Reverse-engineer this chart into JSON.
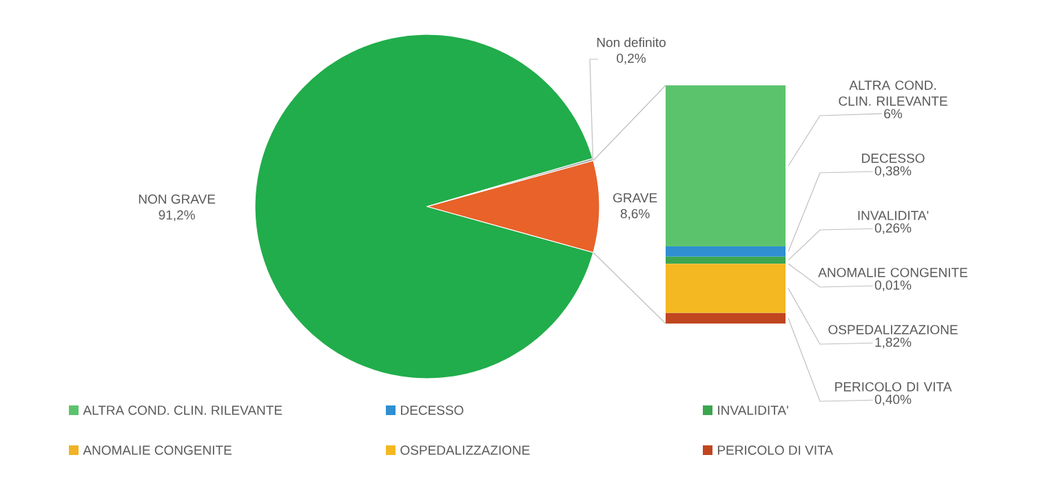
{
  "chart_data": [
    {
      "type": "pie",
      "categories": [
        "NON GRAVE",
        "GRAVE",
        "Non definito"
      ],
      "values": [
        91.2,
        8.6,
        0.2
      ],
      "colors": [
        "#21ad4b",
        "#e8622a",
        "#a6a6a6"
      ],
      "value_labels": [
        "91,2%",
        "8,6%",
        "0,2%"
      ]
    },
    {
      "type": "bar",
      "stacked": true,
      "categories": [
        null
      ],
      "legend": "bottom",
      "series": [
        {
          "name": "PERICOLO DI VITA",
          "color": "#c0461f",
          "values": [
            0.4
          ],
          "value_labels": [
            "0,40%"
          ]
        },
        {
          "name": "OSPEDALIZZAZIONE",
          "color": "#f4b822",
          "values": [
            1.82
          ],
          "value_labels": [
            "1,82%"
          ]
        },
        {
          "name": "ANOMALIE CONGENITE",
          "color": "#f0b323",
          "values": [
            0.01
          ],
          "value_labels": [
            "0,01%"
          ]
        },
        {
          "name": "INVALIDITA'",
          "color": "#3ca64f",
          "values": [
            0.26
          ],
          "value_labels": [
            "0,26%"
          ]
        },
        {
          "name": "DECESSO",
          "color": "#2f8fd1",
          "values": [
            0.38
          ],
          "value_labels": [
            "0,38%"
          ]
        },
        {
          "name": "ALTRA COND. CLIN. RILEVANTE",
          "color": "#5cc36d",
          "values": [
            6
          ],
          "value_labels": [
            "6%"
          ]
        }
      ]
    }
  ]
}
